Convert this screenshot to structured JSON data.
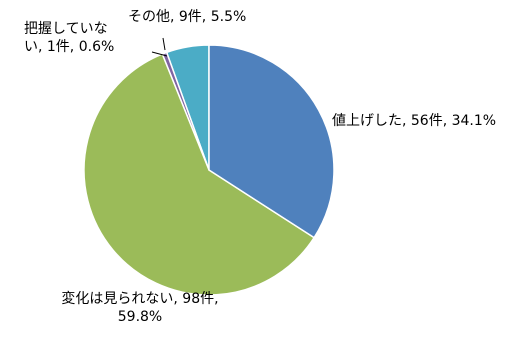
{
  "chart_data": {
    "type": "pie",
    "values": [
      34.1,
      59.8,
      0.6,
      5.5
    ],
    "value_labels": [
      "値上げした, 56件, 34.1%",
      "変化は見られない, 98件, 59.8%",
      "把握していない, 1件, 0.6%",
      "その他, 9件, 5.5%"
    ],
    "colors": [
      "#4f81bd",
      "#9bbb59",
      "#8064a2",
      "#4bacc6"
    ]
  }
}
